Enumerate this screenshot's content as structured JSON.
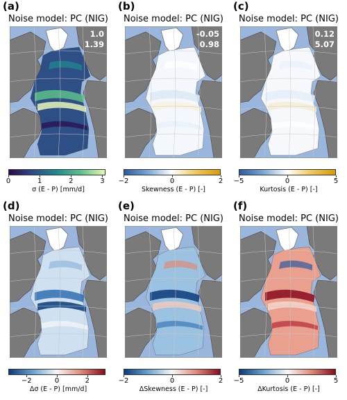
{
  "panels": [
    {
      "letter": "(a)",
      "title": "Noise model: PC (NIG)",
      "stat1": "1.0",
      "stat2": "1.39",
      "field": "sigma",
      "colorbar": {
        "ticks": [
          "0",
          "1",
          "2",
          "3"
        ],
        "tick_values": [
          0,
          1,
          2,
          3
        ],
        "range": [
          0,
          3.1
        ],
        "label": "σ (E - P) [mm/d]",
        "colors": [
          "#2b0a4a",
          "#2d4b8a",
          "#1f8a8e",
          "#5cc08a",
          "#eaf7b5"
        ]
      }
    },
    {
      "letter": "(b)",
      "title": "Noise model: PC (NIG)",
      "stat1": "-0.05",
      "stat2": "0.98",
      "field": "skew",
      "colorbar": {
        "ticks": [
          "−2",
          "0",
          "2"
        ],
        "tick_values": [
          -2,
          0,
          2
        ],
        "range": [
          -2,
          2
        ],
        "label": "Skewness (E - P) [-]",
        "colors": [
          "#2c5aa0",
          "#7aa7d6",
          "#ffffff",
          "#f0c75a",
          "#d99a00"
        ]
      }
    },
    {
      "letter": "(c)",
      "title": "Noise model: PC (NIG)",
      "stat1": "0.12",
      "stat2": "5.07",
      "field": "kurt",
      "colorbar": {
        "ticks": [
          "−5",
          "0",
          "5"
        ],
        "tick_values": [
          -5,
          0,
          5
        ],
        "range": [
          -5,
          5
        ],
        "label": "Kurtosis (E - P) [-]",
        "colors": [
          "#2c5aa0",
          "#7aa7d6",
          "#ffffff",
          "#f0c75a",
          "#d99a00"
        ]
      }
    },
    {
      "letter": "(d)",
      "title": "Noise model: PC (NIG)",
      "stat1": "",
      "stat2": "",
      "field": "dsigma",
      "colorbar": {
        "ticks": [
          "−2",
          "0",
          "2"
        ],
        "tick_values": [
          -2,
          0,
          2
        ],
        "range": [
          -3.2,
          3.2
        ],
        "label": "Δσ (E - P) [mm/d]",
        "colors": [
          "#0b3b7a",
          "#6aa2d0",
          "#f7f7f7",
          "#e08a78",
          "#8a0b1e"
        ]
      }
    },
    {
      "letter": "(e)",
      "title": "Noise model: PC (NIG)",
      "stat1": "",
      "stat2": "",
      "field": "dskew",
      "colorbar": {
        "ticks": [
          "−2",
          "0",
          "2"
        ],
        "tick_values": [
          -2,
          0,
          2
        ],
        "range": [
          -2,
          2
        ],
        "label": "ΔSkewness (E - P) [-]",
        "colors": [
          "#0b3b7a",
          "#6aa2d0",
          "#f7f7f7",
          "#e08a78",
          "#8a0b1e"
        ]
      }
    },
    {
      "letter": "(f)",
      "title": "Noise model: PC (NIG)",
      "stat1": "",
      "stat2": "",
      "field": "dkurt",
      "colorbar": {
        "ticks": [
          "−5",
          "0",
          "5"
        ],
        "tick_values": [
          -5,
          0,
          5
        ],
        "range": [
          -5,
          5
        ],
        "label": "ΔKurtosis (E - P) [-]",
        "colors": [
          "#0b3b7a",
          "#6aa2d0",
          "#f7f7f7",
          "#e08a78",
          "#8a0b1e"
        ]
      }
    }
  ],
  "colors": {
    "ocean_background": "#9ab6dc",
    "land": "#7a7a7a",
    "grid": "#c8c8c8"
  }
}
